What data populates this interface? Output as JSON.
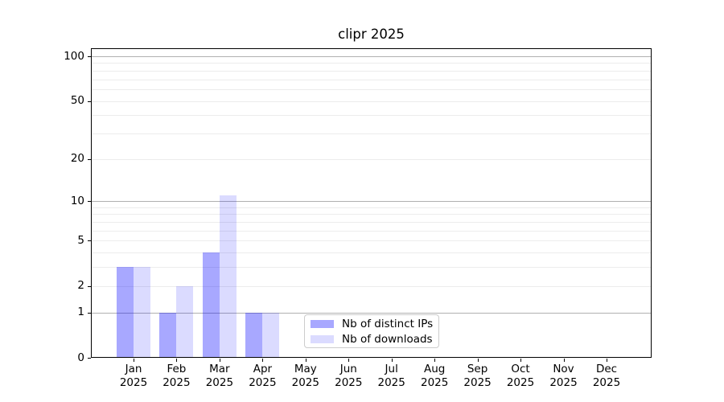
{
  "title": "clipr 2025",
  "chart_data": {
    "type": "bar",
    "title": "clipr 2025",
    "categories": [
      {
        "month": "Jan",
        "year": "2025"
      },
      {
        "month": "Feb",
        "year": "2025"
      },
      {
        "month": "Mar",
        "year": "2025"
      },
      {
        "month": "Apr",
        "year": "2025"
      },
      {
        "month": "May",
        "year": "2025"
      },
      {
        "month": "Jun",
        "year": "2025"
      },
      {
        "month": "Jul",
        "year": "2025"
      },
      {
        "month": "Aug",
        "year": "2025"
      },
      {
        "month": "Sep",
        "year": "2025"
      },
      {
        "month": "Oct",
        "year": "2025"
      },
      {
        "month": "Nov",
        "year": "2025"
      },
      {
        "month": "Dec",
        "year": "2025"
      }
    ],
    "series": [
      {
        "name": "Nb of distinct IPs",
        "color": "rgba(0,0,255,0.34)",
        "color_hex": "#a9a9f7",
        "values": [
          3,
          1,
          4,
          1,
          0,
          0,
          0,
          0,
          0,
          0,
          0,
          0
        ]
      },
      {
        "name": "Nb of downloads",
        "color": "rgba(0,0,255,0.14)",
        "color_hex": "#dcdcf9",
        "values": [
          3,
          2,
          11,
          1,
          0,
          0,
          0,
          0,
          0,
          0,
          0,
          0
        ]
      }
    ],
    "yscale": "log1p",
    "ylim": [
      0,
      100
    ],
    "yticks": [
      0,
      1,
      2,
      5,
      10,
      20,
      50,
      100
    ],
    "major_gridlines": [
      1,
      10,
      100
    ],
    "minor_gridlines": [
      2,
      3,
      4,
      5,
      6,
      7,
      8,
      9,
      20,
      30,
      40,
      50,
      60,
      70,
      80,
      90
    ],
    "grid": true,
    "legend_position": "inside-lower-center",
    "legend_entries": [
      "Nb of distinct IPs",
      "Nb of downloads"
    ]
  },
  "colors": {
    "background": "#ffffff",
    "spine": "#000000",
    "grid_major": "#b0b0b0",
    "grid_minor": "#ececec",
    "legend_border": "#cccccc",
    "text": "#000000"
  }
}
